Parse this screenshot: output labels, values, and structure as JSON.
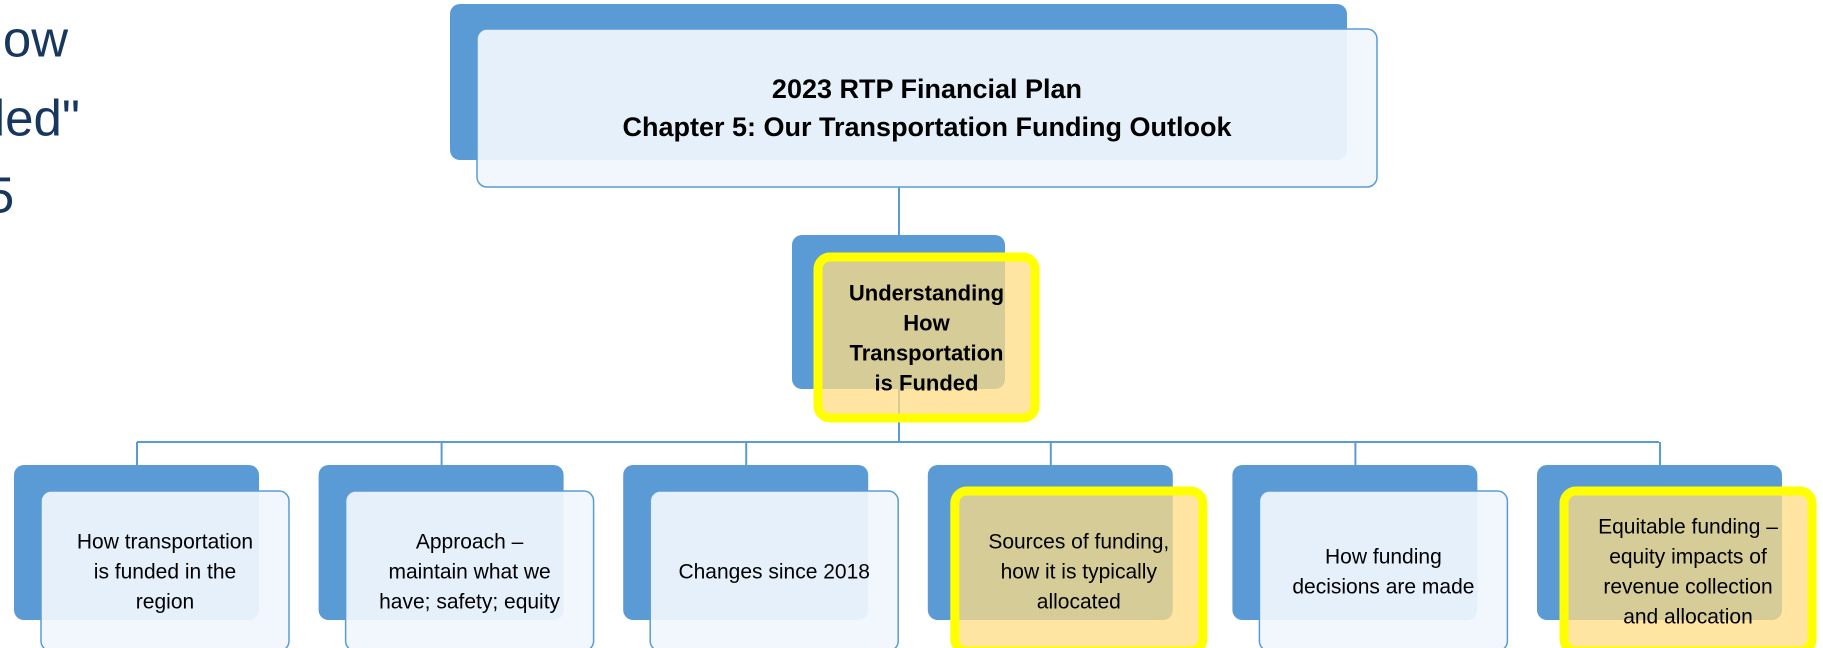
{
  "side_text": [
    "g how",
    "unded\"",
    "5"
  ],
  "header": {
    "lines": [
      "2023 RTP Financial Plan",
      "Chapter 5: Our Transportation Funding Outlook"
    ]
  },
  "center": {
    "lines": [
      "Understanding",
      "How",
      "Transportation",
      "is Funded"
    ]
  },
  "children": [
    {
      "lines": [
        "How transportation",
        "is funded in the",
        "region"
      ]
    },
    {
      "lines": [
        "Approach –",
        "maintain what we",
        "have; safety; equity"
      ]
    },
    {
      "lines": [
        "Changes since 2018"
      ]
    },
    {
      "lines": [
        "Sources of funding,",
        "how it is typically",
        "allocated"
      ]
    },
    {
      "lines": [
        "How funding",
        "decisions are made"
      ]
    },
    {
      "lines": [
        "Equitable funding –",
        "equity impacts of",
        "revenue collection",
        "and allocation"
      ]
    }
  ]
}
